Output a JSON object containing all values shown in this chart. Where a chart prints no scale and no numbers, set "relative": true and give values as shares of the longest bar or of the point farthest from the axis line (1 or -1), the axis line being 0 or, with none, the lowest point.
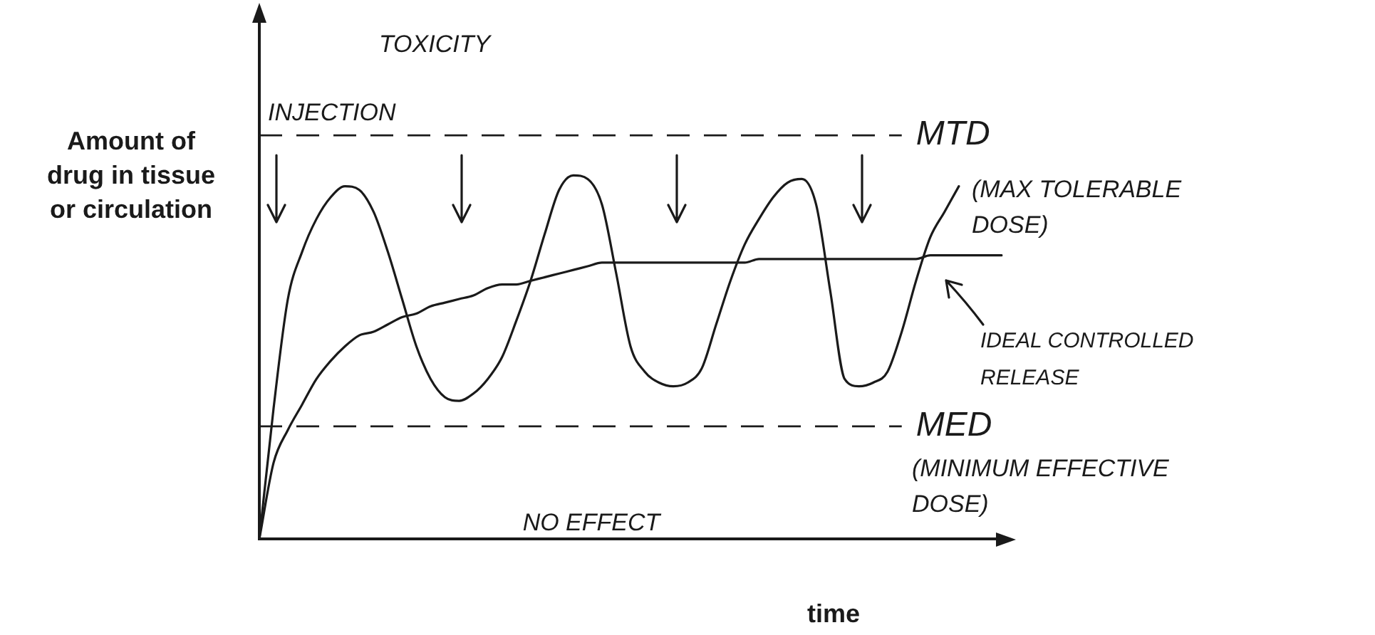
{
  "chart_data": {
    "type": "line",
    "relative": true,
    "ylabel": "Amount of drug in tissue or circulation",
    "xlabel": "time",
    "categories": [
      null,
      null,
      null,
      null,
      null,
      null,
      null,
      null,
      null,
      null,
      null,
      null,
      null,
      null,
      null,
      null,
      null,
      null,
      null,
      null,
      null,
      null,
      null,
      null,
      null,
      null,
      null,
      null,
      null,
      null,
      null,
      null,
      null,
      null,
      null,
      null,
      null,
      null,
      null,
      null,
      null,
      null,
      null,
      null,
      null,
      null,
      null,
      null,
      null,
      null,
      null,
      null,
      null
    ],
    "series": [
      {
        "color": "#1a1a1a",
        "values": [
          0,
          0.36,
          0.66,
          0.79,
          0.88,
          0.94,
          0.97,
          0.96,
          0.9,
          0.79,
          0.66,
          0.53,
          0.44,
          0.39,
          0.38,
          0.4,
          0.44,
          0.5,
          0.6,
          0.71,
          0.84,
          0.96,
          1,
          0.99,
          0.92,
          0.73,
          0.53,
          0.46,
          0.43,
          0.42,
          0.43,
          0.47,
          0.59,
          0.71,
          0.81,
          0.88,
          0.94,
          0.98,
          0.99,
          0.92,
          0.68,
          0.44,
          0.42,
          0.43,
          0.46,
          0.57,
          0.71,
          0.83,
          0.9,
          0.97,
          null,
          null,
          null
        ]
      },
      {
        "name": "IDEAL CONTROLLED RELEASE",
        "color": "#1a1a1a",
        "values": [
          0,
          0.21,
          0.3,
          0.37,
          0.44,
          0.49,
          0.53,
          0.56,
          0.57,
          0.59,
          0.61,
          0.62,
          0.64,
          0.65,
          0.66,
          0.67,
          0.69,
          0.7,
          0.7,
          0.71,
          0.72,
          0.73,
          0.74,
          0.75,
          0.76,
          0.76,
          0.76,
          0.76,
          0.76,
          0.76,
          0.76,
          0.76,
          0.76,
          0.76,
          0.76,
          0.77,
          0.77,
          0.77,
          0.77,
          0.77,
          0.77,
          0.77,
          0.77,
          0.77,
          0.77,
          0.77,
          0.77,
          0.78,
          0.78,
          0.78,
          0.78,
          0.78,
          0.78
        ]
      }
    ],
    "ref_lines": [
      {
        "axis": "y",
        "value": 1.11,
        "label": "MTD",
        "line_style": "dashed"
      },
      {
        "axis": "y",
        "value": 0.31,
        "label": "MED",
        "line_style": "dashed"
      }
    ],
    "annotations": [
      "TOXICITY",
      "INJECTION",
      "(MAX TOLERABLE DOSE)",
      "(MINIMUM EFFECTIVE DOSE)",
      "NO EFFECT"
    ]
  }
}
